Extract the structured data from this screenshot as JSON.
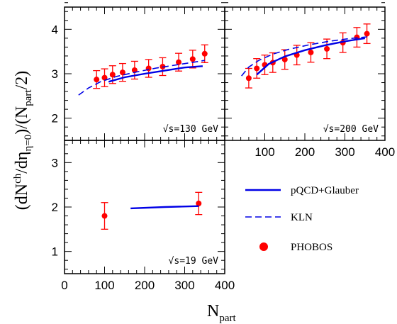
{
  "colors": {
    "theory": "#0000e6",
    "data": "#ff0000",
    "axes": "#000000"
  },
  "axis_titles": {
    "x_main": "N",
    "x_sub": "part",
    "y_part1": "(dN",
    "y_sup1": "ch",
    "y_part2": "/dη",
    "y_sub2": "η=0",
    "y_part3": ")/(N",
    "y_sub3": "part",
    "y_part4": "/2)"
  },
  "legend": {
    "glauber": "pQCD+Glauber",
    "kln": "KLN",
    "phobos": "PHOBOS"
  },
  "chart_data": [
    {
      "type": "scatter",
      "panel": "top-left",
      "energy_label": "√s=130 GeV",
      "xlim": [
        0,
        400
      ],
      "ylim": [
        1.5,
        4.5
      ],
      "x_ticks": [],
      "y_ticks": [
        "2",
        "3",
        "4"
      ],
      "series": [
        {
          "name": "PHOBOS",
          "kind": "points",
          "x": [
            80,
            100,
            120,
            145,
            175,
            210,
            245,
            285,
            320,
            350
          ],
          "y": [
            2.87,
            2.91,
            2.98,
            3.03,
            3.08,
            3.12,
            3.16,
            3.26,
            3.33,
            3.45
          ],
          "err": [
            0.2,
            0.2,
            0.2,
            0.2,
            0.2,
            0.2,
            0.2,
            0.2,
            0.2,
            0.2
          ]
        },
        {
          "name": "pQCD+Glauber",
          "kind": "solid",
          "x": [
            110,
            150,
            200,
            250,
            300,
            345
          ],
          "y": [
            2.82,
            2.92,
            3.0,
            3.07,
            3.14,
            3.17
          ]
        },
        {
          "name": "KLN",
          "kind": "dashed",
          "x": [
            35,
            60,
            90,
            130,
            180,
            230,
            280,
            330,
            350
          ],
          "y": [
            2.52,
            2.68,
            2.82,
            2.94,
            3.04,
            3.13,
            3.2,
            3.27,
            3.3
          ]
        }
      ]
    },
    {
      "type": "scatter",
      "panel": "top-right",
      "energy_label": "√s=200 GeV",
      "xlim": [
        0,
        400
      ],
      "ylim": [
        1.5,
        4.5
      ],
      "x_ticks": [
        "100",
        "200",
        "300",
        "400"
      ],
      "y_ticks": [],
      "series": [
        {
          "name": "PHOBOS",
          "kind": "points",
          "x": [
            60,
            80,
            100,
            120,
            150,
            180,
            215,
            255,
            295,
            330,
            355
          ],
          "y": [
            2.9,
            3.12,
            3.2,
            3.25,
            3.32,
            3.42,
            3.48,
            3.56,
            3.7,
            3.82,
            3.9
          ],
          "err": [
            0.22,
            0.22,
            0.22,
            0.22,
            0.22,
            0.22,
            0.22,
            0.22,
            0.22,
            0.22,
            0.22
          ]
        },
        {
          "name": "pQCD+Glauber",
          "kind": "solid",
          "x": [
            80,
            110,
            150,
            200,
            250,
            300,
            350
          ],
          "y": [
            2.98,
            3.22,
            3.39,
            3.53,
            3.64,
            3.73,
            3.8
          ]
        },
        {
          "name": "KLN",
          "kind": "dashed",
          "x": [
            42,
            60,
            85,
            120,
            160,
            210,
            260,
            310,
            355
          ],
          "y": [
            2.95,
            3.15,
            3.3,
            3.44,
            3.55,
            3.65,
            3.73,
            3.79,
            3.83
          ]
        }
      ]
    },
    {
      "type": "scatter",
      "panel": "bottom-left",
      "energy_label": "√s=19 GeV",
      "xlim": [
        0,
        400
      ],
      "ylim": [
        0.5,
        3.5
      ],
      "x_ticks": [
        "0",
        "100",
        "200",
        "300",
        "400"
      ],
      "y_ticks": [
        "1",
        "2",
        "3"
      ],
      "series": [
        {
          "name": "PHOBOS",
          "kind": "points",
          "x": [
            100,
            335
          ],
          "y": [
            1.8,
            2.08
          ],
          "err": [
            0.3,
            0.25
          ]
        },
        {
          "name": "pQCD+Glauber",
          "kind": "solid",
          "x": [
            165,
            250,
            335
          ],
          "y": [
            1.97,
            2.0,
            2.02
          ]
        }
      ]
    }
  ]
}
